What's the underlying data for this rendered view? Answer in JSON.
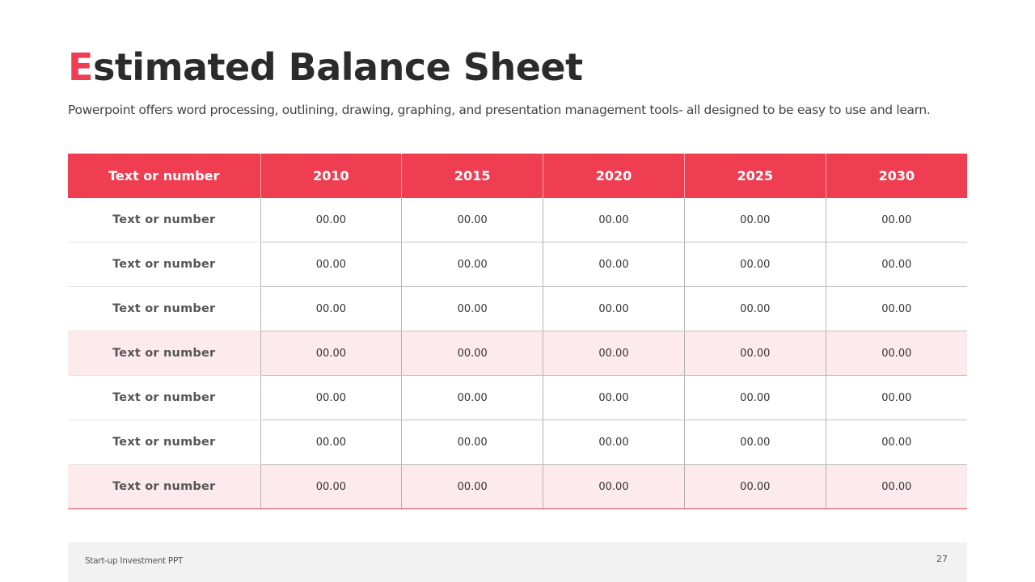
{
  "title": {
    "first_letter": "E",
    "rest": "stimated Balance Sheet"
  },
  "subtitle": "Powerpoint offers word processing, outlining, drawing, graphing, and presentation management tools- all designed to be easy to use and learn.",
  "table": {
    "headers": [
      "Text or number",
      "2010",
      "2015",
      "2020",
      "2025",
      "2030"
    ],
    "rows": [
      {
        "label": "Text  or number",
        "values": [
          "00.00",
          "00.00",
          "00.00",
          "00.00",
          "00.00"
        ],
        "shaded": false
      },
      {
        "label": "Text  or number",
        "values": [
          "00.00",
          "00.00",
          "00.00",
          "00.00",
          "00.00"
        ],
        "shaded": false
      },
      {
        "label": "Text  or number",
        "values": [
          "00.00",
          "00.00",
          "00.00",
          "00.00",
          "00.00"
        ],
        "shaded": false
      },
      {
        "label": "Text  or number",
        "values": [
          "00.00",
          "00.00",
          "00.00",
          "00.00",
          "00.00"
        ],
        "shaded": true
      },
      {
        "label": "Text  or number",
        "values": [
          "00.00",
          "00.00",
          "00.00",
          "00.00",
          "00.00"
        ],
        "shaded": false
      },
      {
        "label": "Text  or number",
        "values": [
          "00.00",
          "00.00",
          "00.00",
          "00.00",
          "00.00"
        ],
        "shaded": false
      },
      {
        "label": "Text  or number",
        "values": [
          "00.00",
          "00.00",
          "00.00",
          "00.00",
          "00.00"
        ],
        "shaded": true
      }
    ]
  },
  "footer": {
    "left_text": "Start-up Investment PPT",
    "page_number": "27"
  },
  "colors": {
    "accent": "#ef3e52",
    "shaded_row": "#fdeaec",
    "footer_bg": "#f2f2f2"
  }
}
